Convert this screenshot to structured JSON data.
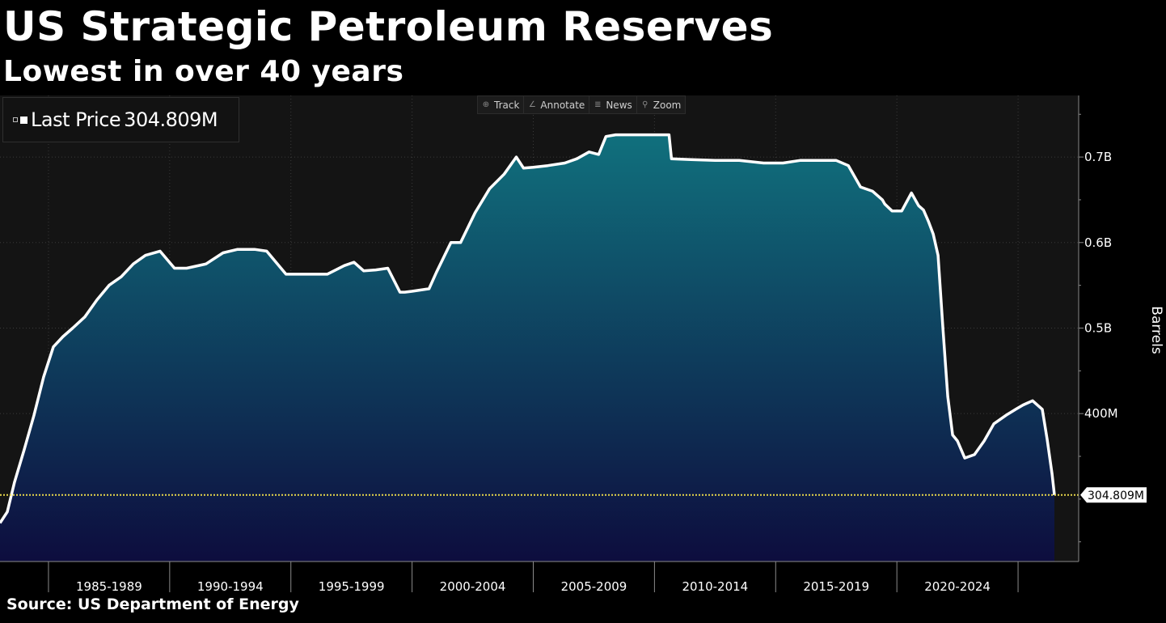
{
  "header": {
    "title": "US Strategic Petroleum Reserves",
    "subtitle": "Lowest in over 40 years"
  },
  "toolbar": {
    "items": [
      {
        "label": "Track",
        "icon": "crosshair-icon"
      },
      {
        "label": "Annotate",
        "icon": "pencil-icon"
      },
      {
        "label": "News",
        "icon": "news-icon"
      },
      {
        "label": "Zoom",
        "icon": "magnifier-icon"
      }
    ]
  },
  "legend": {
    "label": "Last Price",
    "value": "304.809M"
  },
  "source": "Source: US Department of Energy",
  "colors": {
    "background": "#000000",
    "plot_background": "#141414",
    "line": "#ffffff",
    "fill_top": "#10707d",
    "fill_bottom": "#0d0d3e",
    "last_price_line": "#e8d84a"
  },
  "chart_data": {
    "type": "area",
    "title": "US Strategic Petroleum Reserves",
    "subtitle": "Lowest in over 40 years",
    "ylabel": "Barrels",
    "xlabel": "",
    "x_tick_labels": [
      "1985-1989",
      "1990-1994",
      "1995-1999",
      "2000-2004",
      "2005-2009",
      "2010-2014",
      "2015-2019",
      "2020-2024"
    ],
    "y_tick_labels": [
      {
        "value": 400,
        "label": "400M"
      },
      {
        "value": 500,
        "label": "0.5B"
      },
      {
        "value": 600,
        "label": "0.6B"
      },
      {
        "value": 700,
        "label": "0.7B"
      }
    ],
    "ylim": [
      227,
      772
    ],
    "xlim": [
      1983.0,
      2027.5
    ],
    "grid": true,
    "last_price": {
      "value": 304.809,
      "label": "304.809M"
    },
    "series": [
      {
        "name": "Last Price",
        "unit": "million barrels",
        "x": [
          1983.0,
          1983.3,
          1983.6,
          1984.0,
          1984.4,
          1984.8,
          1985.2,
          1985.6,
          1986.0,
          1986.5,
          1987.0,
          1987.5,
          1988.0,
          1988.5,
          1989.0,
          1989.6,
          1990.2,
          1990.5,
          1990.7,
          1991.5,
          1992.2,
          1992.8,
          1993.5,
          1994.0,
          1994.8,
          1995.3,
          1995.7,
          1996.5,
          1997.2,
          1997.6,
          1998.0,
          1998.5,
          1999.0,
          1999.5,
          1999.7,
          2000.0,
          2000.7,
          2001.0,
          2001.6,
          2002.0,
          2002.6,
          2003.2,
          2003.8,
          2004.3,
          2004.6,
          2005.0,
          2005.6,
          2006.3,
          2006.8,
          2007.3,
          2007.7,
          2008.0,
          2008.4,
          2008.9,
          2009.3,
          2010.0,
          2010.6,
          2010.7,
          2011.5,
          2012.5,
          2013.5,
          2014.5,
          2015.3,
          2016.0,
          2016.5,
          2017.0,
          2017.5,
          2018.0,
          2018.5,
          2019.0,
          2019.4,
          2019.5,
          2019.8,
          2020.2,
          2020.6,
          2020.9,
          2021.1,
          2021.3,
          2021.5,
          2021.7,
          2021.9,
          2022.1,
          2022.3,
          2022.5,
          2022.8,
          2023.0,
          2023.2,
          2023.6,
          2024.0,
          2024.5,
          2024.9,
          2025.2,
          2025.6,
          2026.0,
          2026.2,
          2026.4,
          2026.5
        ],
        "values": [
          272,
          285,
          320,
          358,
          398,
          443,
          478,
          490,
          500,
          513,
          533,
          550,
          560,
          575,
          585,
          590,
          570,
          570,
          570,
          575,
          588,
          592,
          592,
          590,
          563,
          563,
          563,
          563,
          573,
          577,
          567,
          568,
          570,
          542,
          542,
          543,
          546,
          565,
          600,
          600,
          635,
          663,
          680,
          700,
          687,
          688,
          690,
          693,
          698,
          706,
          703,
          724,
          726,
          726,
          726,
          726,
          726,
          698,
          697,
          696,
          696,
          693,
          693,
          696,
          696,
          696,
          696,
          690,
          665,
          660,
          650,
          645,
          637,
          637,
          658,
          643,
          638,
          625,
          610,
          585,
          500,
          420,
          375,
          368,
          348,
          350,
          352,
          368,
          388,
          398,
          405,
          410,
          415,
          405,
          370,
          330,
          304.809
        ]
      }
    ]
  }
}
